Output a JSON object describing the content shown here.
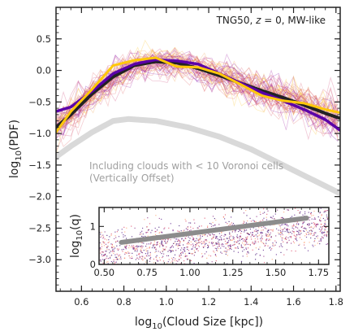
{
  "chart_data": [
    {
      "type": "line",
      "annotation": "TNG50, z = 0, MW-like",
      "annotation_parts": {
        "prefix": "TNG50, ",
        "var": "z",
        "suffix": " = 0, MW-like"
      },
      "xlabel": "log10(Cloud Size [kpc])",
      "xlabel_parts": {
        "pre": "log",
        "sub": "10",
        "post": "(Cloud Size [kpc])"
      },
      "ylabel": "log10(PDF)",
      "ylabel_parts": {
        "pre": "log",
        "sub": "10",
        "post": "(PDF)"
      },
      "xlim": [
        0.48,
        1.82
      ],
      "ylim": [
        -3.5,
        1.0
      ],
      "xticks": [
        0.6,
        0.8,
        1.0,
        1.2,
        1.4,
        1.6,
        1.8
      ],
      "xtick_labels": [
        "0.6",
        "0.8",
        "1.0",
        "1.2",
        "1.4",
        "1.6",
        "1.8"
      ],
      "yticks": [
        0.5,
        0.0,
        -0.5,
        -1.0,
        -1.5,
        -2.0,
        -2.5,
        -3.0
      ],
      "ytick_labels": [
        "0.5",
        "0.0",
        "−0.5",
        "−1.0",
        "−1.5",
        "−2.0",
        "−2.5",
        "−3.0"
      ],
      "offset_note": [
        "Including clouds with < 10 Voronoi cells",
        "(Vertically Offset)"
      ],
      "colors": {
        "black": "#222222",
        "purple": "#5a00a8",
        "yellow": "#ffc80a",
        "gray": "#d9d9d9",
        "thin_palette": [
          "#cc4778",
          "#e16462",
          "#9c179e",
          "#f0a04b",
          "#7e03a8",
          "#fdc527",
          "#d8576b"
        ]
      },
      "series": [
        {
          "kind": "median-black",
          "x": [
            0.48,
            0.55,
            0.65,
            0.75,
            0.85,
            0.95,
            1.05,
            1.15,
            1.25,
            1.35,
            1.45,
            1.55,
            1.65,
            1.75,
            1.82
          ],
          "y": [
            -0.9,
            -0.7,
            -0.37,
            -0.1,
            0.08,
            0.14,
            0.12,
            0.03,
            -0.08,
            -0.2,
            -0.32,
            -0.43,
            -0.55,
            -0.68,
            -0.76
          ]
        },
        {
          "kind": "median-purple",
          "x": [
            0.48,
            0.55,
            0.65,
            0.75,
            0.85,
            0.95,
            1.05,
            1.15,
            1.25,
            1.35,
            1.45,
            1.55,
            1.65,
            1.75,
            1.82
          ],
          "y": [
            -0.65,
            -0.58,
            -0.33,
            -0.05,
            0.1,
            0.17,
            0.15,
            0.1,
            -0.05,
            -0.2,
            -0.35,
            -0.48,
            -0.62,
            -0.78,
            -0.95
          ]
        },
        {
          "kind": "median-yellow",
          "x": [
            0.48,
            0.55,
            0.65,
            0.75,
            0.85,
            0.95,
            1.05,
            1.15,
            1.25,
            1.35,
            1.45,
            1.55,
            1.65,
            1.75,
            1.82
          ],
          "y": [
            -0.98,
            -0.65,
            -0.3,
            0.08,
            0.16,
            0.2,
            0.06,
            0.05,
            -0.05,
            -0.22,
            -0.4,
            -0.48,
            -0.52,
            -0.62,
            -0.67
          ]
        },
        {
          "kind": "offset-gray",
          "x": [
            0.48,
            0.55,
            0.65,
            0.75,
            0.82,
            0.95,
            1.1,
            1.25,
            1.4,
            1.55,
            1.7,
            1.82
          ],
          "y": [
            -1.37,
            -1.2,
            -0.98,
            -0.8,
            -0.77,
            -0.8,
            -0.9,
            -1.05,
            -1.25,
            -1.5,
            -1.75,
            -1.95
          ]
        }
      ]
    },
    {
      "type": "scatter",
      "xlim": [
        0.47,
        1.81
      ],
      "ylim": [
        0,
        1.5
      ],
      "xticks": [
        0.5,
        0.75,
        1.0,
        1.25,
        1.5,
        1.75
      ],
      "xtick_labels": [
        "0.50",
        "0.75",
        "1.00",
        "1.25",
        "1.50",
        "1.75"
      ],
      "yticks": [
        0,
        1
      ],
      "ytick_labels": [
        "0",
        "1"
      ],
      "ylabel": "log10(q)",
      "ylabel_parts": {
        "pre": "log",
        "sub": "10",
        "post": "(q)"
      },
      "colors": [
        "#3b0f70",
        "#8c2981",
        "#de4968",
        "#fe9f6d",
        "#5b1f8a"
      ],
      "trend": {
        "x": [
          0.6,
          1.68
        ],
        "y": [
          0.58,
          1.22
        ],
        "color": "#8c8c8c"
      }
    }
  ]
}
